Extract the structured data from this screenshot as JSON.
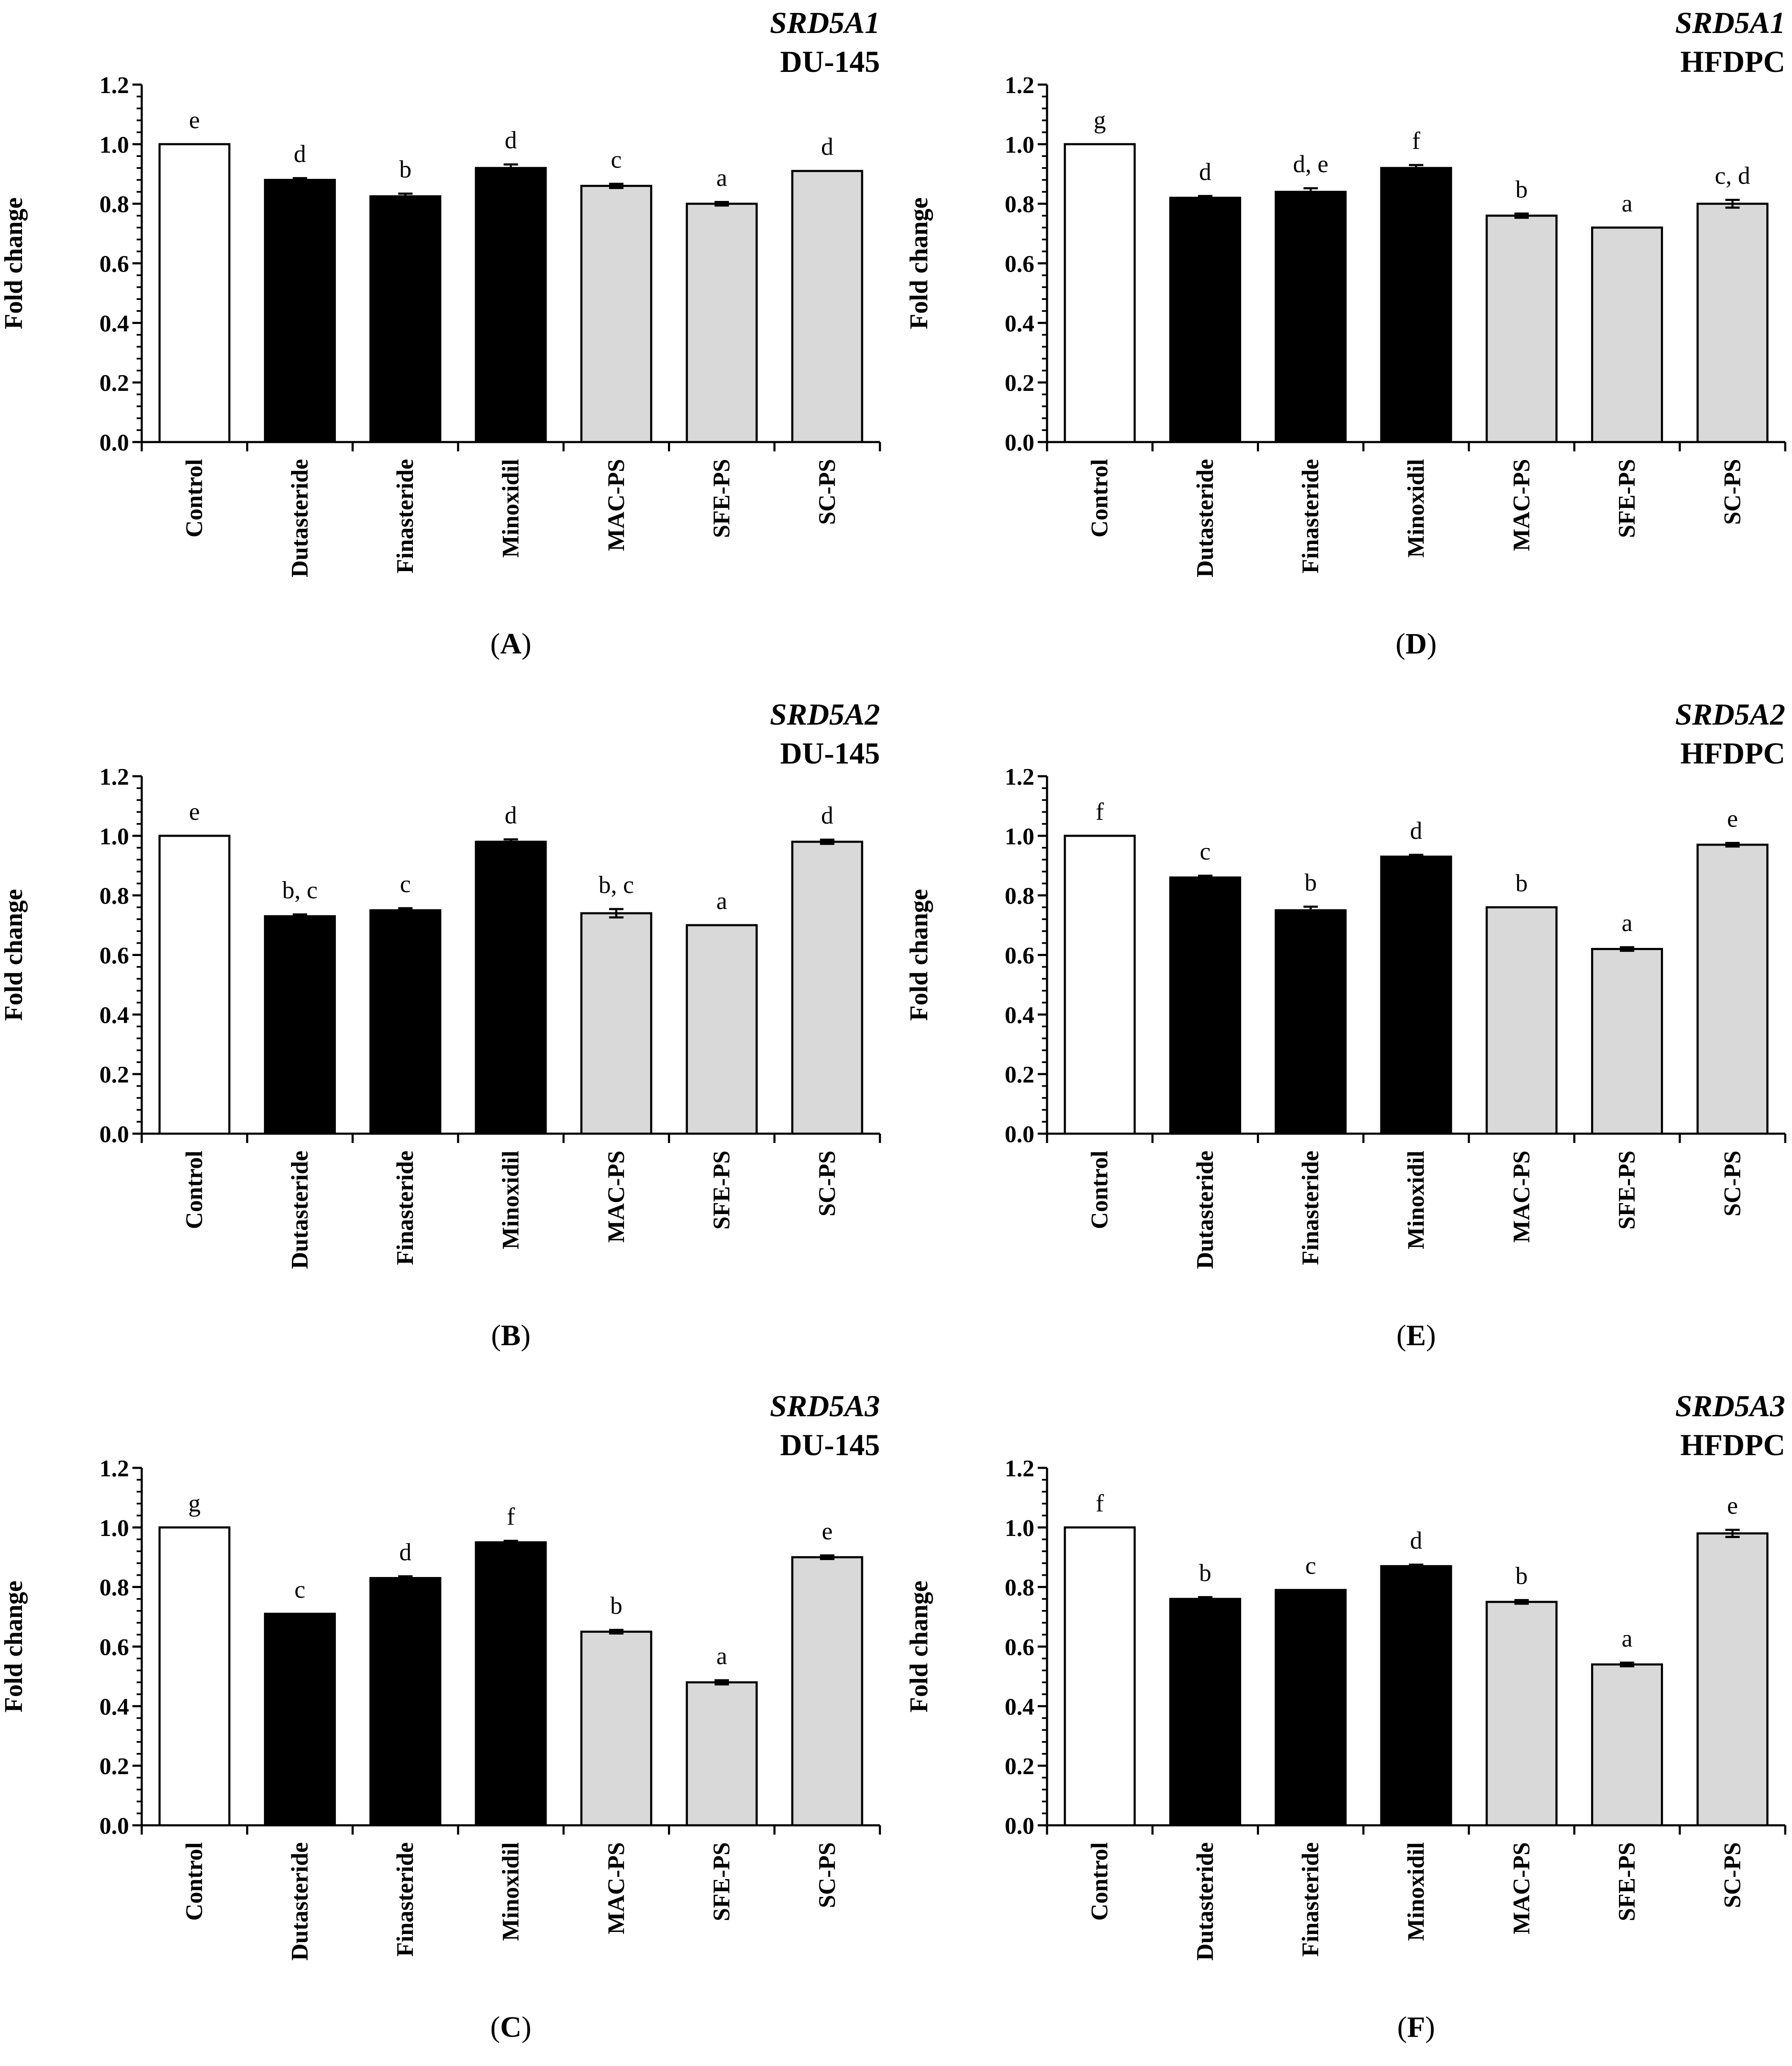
{
  "figure": {
    "palette": {
      "control": "#ffffff",
      "drug": "#000000",
      "extract": "#d9d9d9",
      "stroke": "#000000"
    }
  },
  "chart_data": [
    {
      "panel_label": "A",
      "type": "bar",
      "gene": "SRD5A1",
      "cell_line": "DU-145",
      "ylabel": "Fold change",
      "ylim": [
        0,
        1.2
      ],
      "yticks": [
        "0.0",
        "0.2",
        "0.4",
        "0.6",
        "0.8",
        "1.0",
        "1.2"
      ],
      "categories": [
        "Control",
        "Dutasteride",
        "Finasteride",
        "Minoxidil",
        "MAC-PS",
        "SFE-PS",
        "SC-PS"
      ],
      "groups": [
        "control",
        "drug",
        "drug",
        "drug",
        "extract",
        "extract",
        "extract"
      ],
      "values": [
        1.0,
        0.88,
        0.825,
        0.92,
        0.86,
        0.8,
        0.91
      ],
      "errors": [
        0,
        0.006,
        0.009,
        0.012,
        0.007,
        0.006,
        0
      ],
      "letters": [
        "e",
        "d",
        "b",
        "d",
        "c",
        "a",
        "d"
      ]
    },
    {
      "panel_label": "B",
      "type": "bar",
      "gene": "SRD5A2",
      "cell_line": "DU-145",
      "ylabel": "Fold change",
      "ylim": [
        0,
        1.2
      ],
      "yticks": [
        "0.0",
        "0.2",
        "0.4",
        "0.6",
        "0.8",
        "1.0",
        "1.2"
      ],
      "categories": [
        "Control",
        "Dutasteride",
        "Finasteride",
        "Minoxidil",
        "MAC-PS",
        "SFE-PS",
        "SC-PS"
      ],
      "groups": [
        "control",
        "drug",
        "drug",
        "drug",
        "extract",
        "extract",
        "extract"
      ],
      "values": [
        1.0,
        0.73,
        0.75,
        0.98,
        0.74,
        0.7,
        0.98
      ],
      "errors": [
        0,
        0.006,
        0.007,
        0.008,
        0.014,
        0,
        0.007
      ],
      "letters": [
        "e",
        "b, c",
        "c",
        "d",
        "b, c",
        "a",
        "d"
      ]
    },
    {
      "panel_label": "C",
      "type": "bar",
      "gene": "SRD5A3",
      "cell_line": "DU-145",
      "ylabel": "Fold change",
      "ylim": [
        0,
        1.2
      ],
      "yticks": [
        "0.0",
        "0.2",
        "0.4",
        "0.6",
        "0.8",
        "1.0",
        "1.2"
      ],
      "categories": [
        "Control",
        "Dutasteride",
        "Finasteride",
        "Minoxidil",
        "MAC-PS",
        "SFE-PS",
        "SC-PS"
      ],
      "groups": [
        "control",
        "drug",
        "drug",
        "drug",
        "extract",
        "extract",
        "extract"
      ],
      "values": [
        1.0,
        0.71,
        0.83,
        0.95,
        0.65,
        0.48,
        0.9
      ],
      "errors": [
        0,
        0,
        0.006,
        0.005,
        0.006,
        0.007,
        0.006
      ],
      "letters": [
        "g",
        "c",
        "d",
        "f",
        "b",
        "a",
        "e"
      ]
    },
    {
      "panel_label": "D",
      "type": "bar",
      "gene": "SRD5A1",
      "cell_line": "HFDPC",
      "ylabel": "Fold change",
      "ylim": [
        0,
        1.2
      ],
      "yticks": [
        "0.0",
        "0.2",
        "0.4",
        "0.6",
        "0.8",
        "1.0",
        "1.2"
      ],
      "categories": [
        "Control",
        "Dutasteride",
        "Finasteride",
        "Minoxidil",
        "MAC-PS",
        "SFE-PS",
        "SC-PS"
      ],
      "groups": [
        "control",
        "drug",
        "drug",
        "drug",
        "extract",
        "extract",
        "extract"
      ],
      "values": [
        1.0,
        0.82,
        0.84,
        0.92,
        0.76,
        0.72,
        0.8
      ],
      "errors": [
        0,
        0.006,
        0.012,
        0.01,
        0.007,
        0,
        0.013
      ],
      "letters": [
        "g",
        "d",
        "d, e",
        "f",
        "b",
        "a",
        "c, d"
      ]
    },
    {
      "panel_label": "E",
      "type": "bar",
      "gene": "SRD5A2",
      "cell_line": "HFDPC",
      "ylabel": "Fold change",
      "ylim": [
        0,
        1.2
      ],
      "yticks": [
        "0.0",
        "0.2",
        "0.4",
        "0.6",
        "0.8",
        "1.0",
        "1.2"
      ],
      "categories": [
        "Control",
        "Dutasteride",
        "Finasteride",
        "Minoxidil",
        "MAC-PS",
        "SFE-PS",
        "SC-PS"
      ],
      "groups": [
        "control",
        "drug",
        "drug",
        "drug",
        "extract",
        "extract",
        "extract"
      ],
      "values": [
        1.0,
        0.86,
        0.75,
        0.93,
        0.76,
        0.62,
        0.97
      ],
      "errors": [
        0,
        0.006,
        0.012,
        0.006,
        0,
        0.006,
        0.006
      ],
      "letters": [
        "f",
        "c",
        "b",
        "d",
        "b",
        "a",
        "e"
      ]
    },
    {
      "panel_label": "F",
      "type": "bar",
      "gene": "SRD5A3",
      "cell_line": "HFDPC",
      "ylabel": "Fold change",
      "ylim": [
        0,
        1.2
      ],
      "yticks": [
        "0.0",
        "0.2",
        "0.4",
        "0.6",
        "0.8",
        "1.0",
        "1.2"
      ],
      "categories": [
        "Control",
        "Dutasteride",
        "Finasteride",
        "Minoxidil",
        "MAC-PS",
        "SFE-PS",
        "SC-PS"
      ],
      "groups": [
        "control",
        "drug",
        "drug",
        "drug",
        "extract",
        "extract",
        "extract"
      ],
      "values": [
        1.0,
        0.76,
        0.79,
        0.87,
        0.75,
        0.54,
        0.98
      ],
      "errors": [
        0,
        0.006,
        0,
        0.005,
        0.006,
        0.006,
        0.012
      ],
      "letters": [
        "f",
        "b",
        "c",
        "d",
        "b",
        "a",
        "e"
      ]
    }
  ]
}
